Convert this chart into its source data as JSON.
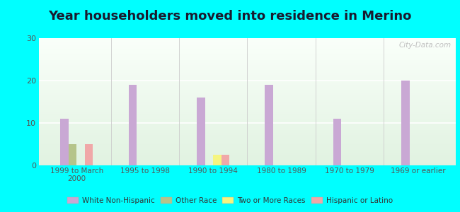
{
  "title": "Year householders moved into residence in Merino",
  "categories": [
    "1999 to March\n2000",
    "1995 to 1998",
    "1990 to 1994",
    "1980 to 1989",
    "1970 to 1979",
    "1969 or earlier"
  ],
  "series": {
    "White Non-Hispanic": [
      11,
      19,
      16,
      19,
      11,
      20
    ],
    "Other Race": [
      5,
      0,
      0,
      0,
      0,
      0
    ],
    "Two or More Races": [
      0,
      0,
      2.5,
      0,
      0,
      0
    ],
    "Hispanic or Latino": [
      5,
      0,
      2.5,
      0,
      0,
      0
    ]
  },
  "colors": {
    "White Non-Hispanic": "#c9a8d4",
    "Other Race": "#b5c48a",
    "Two or More Races": "#f5f580",
    "Hispanic or Latino": "#f0a8a8"
  },
  "ylim": [
    0,
    30
  ],
  "yticks": [
    0,
    10,
    20,
    30
  ],
  "outer_bg": "#00ffff",
  "watermark": "City-Data.com",
  "bar_width": 0.12,
  "title_fontsize": 13
}
